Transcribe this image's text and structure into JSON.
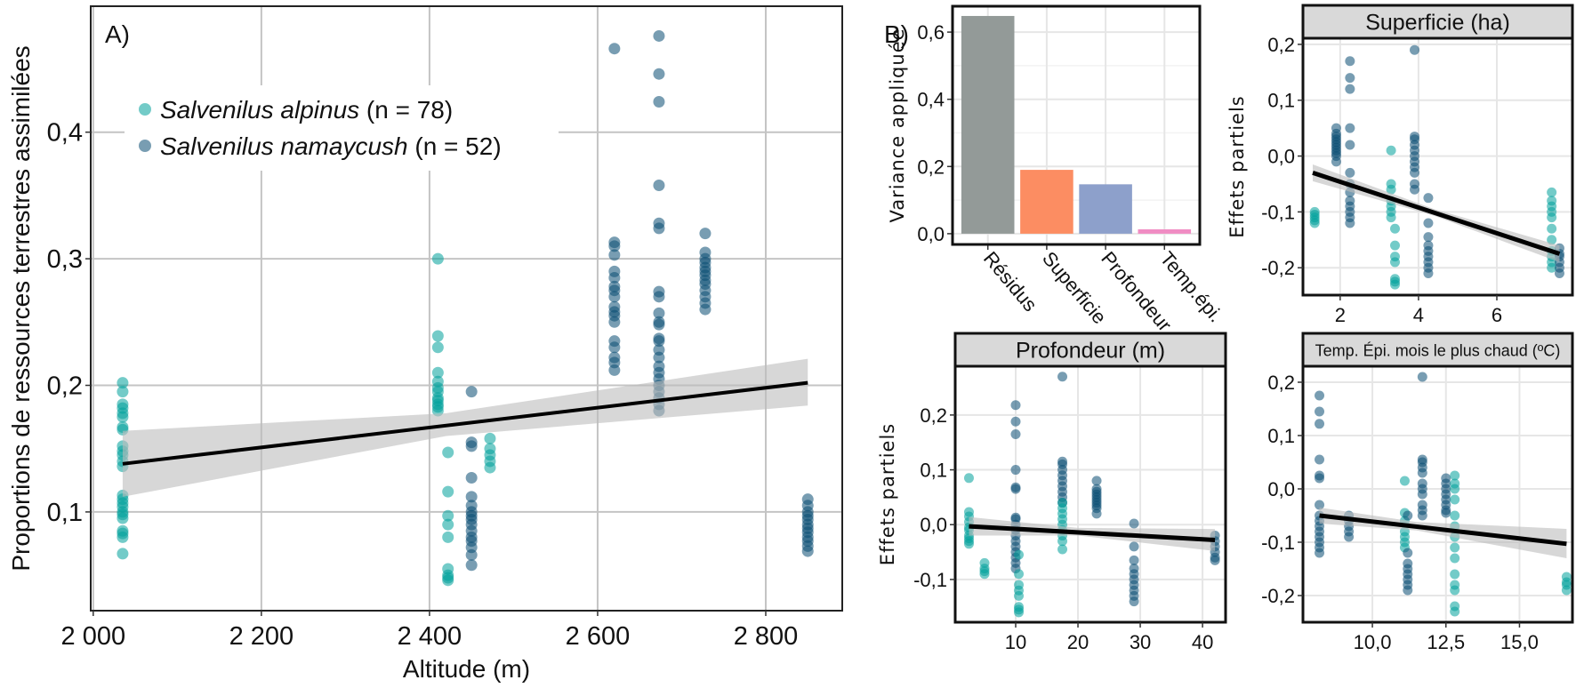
{
  "colors": {
    "alpinus": "#00a19a",
    "namaycush": "#0a4c72",
    "fit": "#000000",
    "ci": "#bdbdbd"
  },
  "legend": {
    "items": [
      {
        "species": "Salvenilus alpinus",
        "count": "(n = 78)",
        "key": "alpinus"
      },
      {
        "species": "Salvenilus namaycush",
        "count": "(n = 52)",
        "key": "namaycush"
      }
    ]
  },
  "chart_data": [
    {
      "id": "A",
      "tag": "A)",
      "type": "scatter",
      "xlabel": "Altitude (m)",
      "ylabel": "Proportions de ressources terrestres assimilées",
      "xlim": [
        1997,
        2891
      ],
      "ylim": [
        0.022,
        0.4995
      ],
      "xticks": [
        {
          "v": 2000,
          "label": "2 000"
        },
        {
          "v": 2200,
          "label": "2 200"
        },
        {
          "v": 2400,
          "label": "2 400"
        },
        {
          "v": 2600,
          "label": "2 600"
        },
        {
          "v": 2800,
          "label": "2 800"
        }
      ],
      "yticks": [
        {
          "v": 0.1,
          "label": "0,1"
        },
        {
          "v": 0.2,
          "label": "0,2"
        },
        {
          "v": 0.3,
          "label": "0,3"
        },
        {
          "v": 0.4,
          "label": "0,4"
        }
      ],
      "grid": true,
      "legend_position": "top-left",
      "fit": {
        "x": [
          2035,
          2850
        ],
        "y": [
          0.138,
          0.202
        ]
      },
      "ci": {
        "x": [
          2035,
          2420,
          2850
        ],
        "lo": [
          0.112,
          0.16,
          0.184
        ],
        "hi": [
          0.164,
          0.178,
          0.221
        ]
      },
      "groups": [
        {
          "species": "alpinus",
          "x": 2035,
          "y": [
            0.202,
            0.195,
            0.185,
            0.182,
            0.178,
            0.175,
            0.167,
            0.165,
            0.152,
            0.148,
            0.145,
            0.14,
            0.136,
            0.113,
            0.11,
            0.107,
            0.104,
            0.1,
            0.098,
            0.095,
            0.085,
            0.083,
            0.08,
            0.067
          ]
        },
        {
          "species": "alpinus",
          "x": 2410,
          "y": [
            0.3,
            0.239,
            0.23,
            0.21,
            0.203,
            0.198,
            0.195,
            0.19,
            0.188,
            0.185,
            0.183,
            0.18
          ]
        },
        {
          "species": "alpinus",
          "x": 2422,
          "y": [
            0.147,
            0.116,
            0.097,
            0.09,
            0.08,
            0.055,
            0.05,
            0.048,
            0.046
          ]
        },
        {
          "species": "alpinus",
          "x": 2472,
          "y": [
            0.158,
            0.15,
            0.145,
            0.14,
            0.135
          ]
        },
        {
          "species": "namaycush",
          "x": 2450,
          "y": [
            0.195,
            0.155,
            0.152,
            0.127,
            0.112,
            0.105,
            0.1,
            0.097,
            0.094,
            0.09,
            0.085,
            0.08,
            0.077,
            0.072,
            0.066,
            0.058
          ]
        },
        {
          "species": "namaycush",
          "x": 2620,
          "y": [
            0.466,
            0.313,
            0.31,
            0.303,
            0.29,
            0.285,
            0.278,
            0.275,
            0.27,
            0.262,
            0.258,
            0.255,
            0.25,
            0.235,
            0.23,
            0.222,
            0.218,
            0.212
          ]
        },
        {
          "species": "namaycush",
          "x": 2673,
          "y": [
            0.476,
            0.446,
            0.424,
            0.358,
            0.328,
            0.324,
            0.274,
            0.27,
            0.257,
            0.25,
            0.248,
            0.237,
            0.235,
            0.228,
            0.222,
            0.215,
            0.21,
            0.205,
            0.2,
            0.195,
            0.19,
            0.185,
            0.18
          ]
        },
        {
          "species": "namaycush",
          "x": 2728,
          "y": [
            0.32,
            0.305,
            0.3,
            0.297,
            0.293,
            0.29,
            0.287,
            0.283,
            0.28,
            0.275,
            0.27,
            0.265,
            0.26
          ]
        },
        {
          "species": "namaycush",
          "x": 2850,
          "y": [
            0.11,
            0.105,
            0.1,
            0.097,
            0.094,
            0.09,
            0.087,
            0.084,
            0.08,
            0.077,
            0.073,
            0.069
          ]
        }
      ]
    },
    {
      "id": "B",
      "tag": "B)",
      "type": "bar",
      "ylabel": "Variance appliquée",
      "ylim": [
        -0.032,
        0.677
      ],
      "yticks": [
        {
          "v": 0,
          "label": "0,0"
        },
        {
          "v": 0.2,
          "label": "0,2"
        },
        {
          "v": 0.4,
          "label": "0,4"
        },
        {
          "v": 0.6,
          "label": "0,6"
        }
      ],
      "grid": true,
      "categories": [
        "Résidus",
        "Superficie",
        "Profondeur",
        "Temp.épi."
      ],
      "values": [
        0.648,
        0.19,
        0.147,
        0.013
      ],
      "bar_colors": [
        "#939a98",
        "#fc8d62",
        "#8da0cb",
        "#f08cc3"
      ]
    },
    {
      "id": "sup",
      "type": "scatter",
      "title": "Superficie (ha)",
      "ylabel": "Effets partiels",
      "xlim": [
        1.05,
        7.93
      ],
      "ylim": [
        -0.249,
        0.211
      ],
      "xticks": [
        {
          "v": 2,
          "label": "2"
        },
        {
          "v": 4,
          "label": "4"
        },
        {
          "v": 6,
          "label": "6"
        }
      ],
      "yticks": [
        {
          "v": -0.2,
          "label": "-0,2"
        },
        {
          "v": -0.1,
          "label": "-0,1"
        },
        {
          "v": 0,
          "label": "0,0"
        },
        {
          "v": 0.1,
          "label": "0,1"
        },
        {
          "v": 0.2,
          "label": "0,2"
        }
      ],
      "grid": true,
      "fit": {
        "x": [
          1.3,
          7.6
        ],
        "y": [
          -0.03,
          -0.175
        ]
      },
      "ci": {
        "x": [
          1.3,
          4.4,
          7.6
        ],
        "lo": [
          -0.045,
          -0.107,
          -0.19
        ],
        "hi": [
          -0.015,
          -0.095,
          -0.16
        ]
      },
      "groups": [
        {
          "species": "alpinus",
          "x": 1.35,
          "y": [
            -0.1,
            -0.105,
            -0.11,
            -0.115,
            -0.12
          ]
        },
        {
          "species": "namaycush",
          "x": 1.9,
          "y": [
            0.05,
            0.04,
            0.035,
            0.03,
            0.025,
            0.02,
            0.015,
            0.01,
            0.005,
            0,
            -0.01
          ]
        },
        {
          "species": "namaycush",
          "x": 2.25,
          "y": [
            0.17,
            0.14,
            0.12,
            0.05,
            0.02,
            -0.03,
            -0.05,
            -0.065,
            -0.08,
            -0.09,
            -0.1,
            -0.11,
            -0.12
          ]
        },
        {
          "species": "alpinus",
          "x": 3.3,
          "y": [
            0.01,
            -0.05,
            -0.06,
            -0.08,
            -0.09,
            -0.1,
            -0.11
          ]
        },
        {
          "species": "alpinus",
          "x": 3.4,
          "y": [
            -0.13,
            -0.16,
            -0.18,
            -0.19,
            -0.22,
            -0.225,
            -0.23
          ]
        },
        {
          "species": "namaycush",
          "x": 3.9,
          "y": [
            0.19,
            0.035,
            0.03,
            0.02,
            0.01,
            0,
            -0.01,
            -0.02,
            -0.03,
            -0.05,
            -0.06
          ]
        },
        {
          "species": "namaycush",
          "x": 4.25,
          "y": [
            -0.075,
            -0.12,
            -0.145,
            -0.16,
            -0.17,
            -0.18,
            -0.19,
            -0.2,
            -0.21
          ]
        },
        {
          "species": "alpinus",
          "x": 7.4,
          "y": [
            -0.065,
            -0.08,
            -0.09,
            -0.1,
            -0.11,
            -0.13,
            -0.15,
            -0.17,
            -0.18,
            -0.19,
            -0.2
          ]
        },
        {
          "species": "namaycush",
          "x": 7.6,
          "y": [
            -0.165,
            -0.175,
            -0.18,
            -0.19,
            -0.2,
            -0.21
          ]
        }
      ]
    },
    {
      "id": "prof",
      "type": "scatter",
      "title": "Profondeur (m)",
      "ylabel": "Effets partiels",
      "xlim": [
        0.29,
        43.7
      ],
      "ylim": [
        -0.178,
        0.289
      ],
      "xticks": [
        {
          "v": 10,
          "label": "10"
        },
        {
          "v": 20,
          "label": "20"
        },
        {
          "v": 30,
          "label": "30"
        },
        {
          "v": 40,
          "label": "40"
        }
      ],
      "yticks": [
        {
          "v": -0.1,
          "label": "-0,1"
        },
        {
          "v": 0,
          "label": "0,0"
        },
        {
          "v": 0.1,
          "label": "0,1"
        },
        {
          "v": 0.2,
          "label": "0,2"
        }
      ],
      "grid": true,
      "fit": {
        "x": [
          2.5,
          42
        ],
        "y": [
          -0.003,
          -0.028
        ]
      },
      "ci": {
        "x": [
          2.5,
          20,
          42
        ],
        "lo": [
          -0.02,
          -0.02,
          -0.048
        ],
        "hi": [
          0.014,
          -0.006,
          -0.008
        ]
      },
      "groups": [
        {
          "species": "alpinus",
          "x": 2.5,
          "y": [
            0.085,
            0.023,
            0.015,
            0.005,
            -0.005,
            -0.01,
            -0.02,
            -0.025,
            -0.03,
            -0.035
          ]
        },
        {
          "species": "alpinus",
          "x": 5,
          "y": [
            -0.07,
            -0.08,
            -0.085,
            -0.09
          ]
        },
        {
          "species": "namaycush",
          "x": 10,
          "y": [
            0.218,
            0.188,
            0.165,
            0.1,
            0.068,
            0.065,
            0.013,
            0.01,
            0,
            -0.01,
            -0.02,
            -0.03,
            -0.04,
            -0.05,
            -0.06,
            -0.07,
            -0.08
          ]
        },
        {
          "species": "alpinus",
          "x": 10.5,
          "y": [
            -0.055,
            -0.09,
            -0.11,
            -0.12,
            -0.13,
            -0.15,
            -0.155,
            -0.16
          ]
        },
        {
          "species": "namaycush",
          "x": 17.5,
          "y": [
            0.27,
            0.115,
            0.11,
            0.1,
            0.09,
            0.08,
            0.07,
            0.06,
            0.05,
            0.04
          ]
        },
        {
          "species": "alpinus",
          "x": 17.5,
          "y": [
            0.04,
            0.03,
            0.02,
            0.01,
            0,
            -0.01,
            -0.02,
            -0.03,
            -0.045
          ]
        },
        {
          "species": "namaycush",
          "x": 23,
          "y": [
            0.08,
            0.065,
            0.06,
            0.055,
            0.05,
            0.045,
            0.04,
            0.035,
            0.03,
            0.02
          ]
        },
        {
          "species": "namaycush",
          "x": 29,
          "y": [
            0.002,
            -0.04,
            -0.065,
            -0.08,
            -0.09,
            -0.1,
            -0.11,
            -0.12,
            -0.13,
            -0.14
          ]
        },
        {
          "species": "namaycush",
          "x": 42,
          "y": [
            -0.02,
            -0.03,
            -0.04,
            -0.05,
            -0.06,
            -0.065
          ]
        }
      ]
    },
    {
      "id": "temp",
      "type": "scatter",
      "title": "Temp. Épi. mois le plus chaud (ºC)",
      "xlim": [
        7.64,
        16.8
      ],
      "ylim": [
        -0.25,
        0.23
      ],
      "xticks": [
        {
          "v": 10,
          "label": "10,0"
        },
        {
          "v": 12.5,
          "label": "12,5"
        },
        {
          "v": 15,
          "label": "15,0"
        }
      ],
      "yticks": [
        {
          "v": -0.2,
          "label": "-0,2"
        },
        {
          "v": -0.1,
          "label": "-0,1"
        },
        {
          "v": 0,
          "label": "0,0"
        },
        {
          "v": 0.1,
          "label": "0,1"
        },
        {
          "v": 0.2,
          "label": "0,2"
        }
      ],
      "grid": true,
      "fit": {
        "x": [
          8.2,
          16.6
        ],
        "y": [
          -0.05,
          -0.103
        ]
      },
      "ci": {
        "x": [
          8.2,
          11.5,
          16.6
        ],
        "lo": [
          -0.065,
          -0.078,
          -0.13
        ],
        "hi": [
          -0.035,
          -0.062,
          -0.075
        ]
      },
      "groups": [
        {
          "species": "namaycush",
          "x": 8.2,
          "y": [
            0.175,
            0.145,
            0.122,
            0.055,
            0.025,
            0.02,
            -0.03,
            -0.05,
            -0.06,
            -0.07,
            -0.08,
            -0.09,
            -0.1,
            -0.11,
            -0.12
          ]
        },
        {
          "species": "namaycush",
          "x": 9.2,
          "y": [
            -0.05,
            -0.06,
            -0.07,
            -0.08,
            -0.09
          ]
        },
        {
          "species": "alpinus",
          "x": 11.1,
          "y": [
            0.015,
            -0.045,
            -0.06,
            -0.08,
            -0.09,
            -0.1,
            -0.11
          ]
        },
        {
          "species": "namaycush",
          "x": 11.2,
          "y": [
            -0.05,
            -0.12,
            -0.14,
            -0.15,
            -0.16,
            -0.17,
            -0.18,
            -0.19
          ]
        },
        {
          "species": "namaycush",
          "x": 11.7,
          "y": [
            0.21,
            0.055,
            0.05,
            0.04,
            0.03,
            0.01,
            0,
            -0.01,
            -0.03,
            -0.04,
            -0.05
          ]
        },
        {
          "species": "namaycush",
          "x": 12.5,
          "y": [
            0.02,
            0.01,
            0,
            -0.01,
            -0.02,
            -0.03,
            -0.04,
            -0.045
          ]
        },
        {
          "species": "alpinus",
          "x": 12.8,
          "y": [
            0.025,
            0.01,
            0,
            -0.02,
            -0.05,
            -0.07,
            -0.09,
            -0.11,
            -0.13,
            -0.16,
            -0.18,
            -0.19,
            -0.22,
            -0.23
          ]
        },
        {
          "species": "alpinus",
          "x": 16.6,
          "y": [
            -0.165,
            -0.175,
            -0.18,
            -0.19
          ]
        }
      ]
    }
  ]
}
